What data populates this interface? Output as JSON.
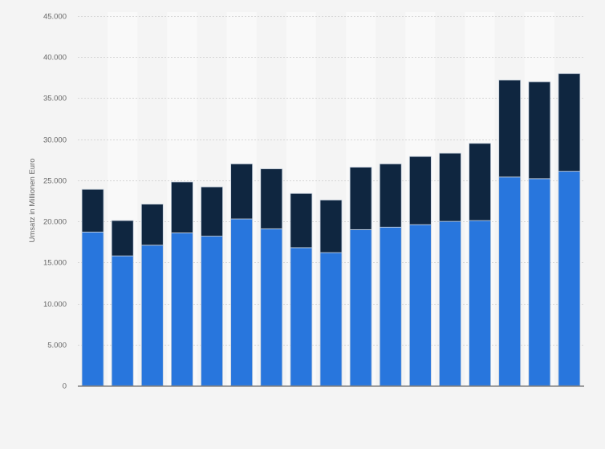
{
  "chart_data": {
    "type": "bar",
    "stacked": true,
    "title": "",
    "xlabel": "",
    "ylabel": "Umsatz in Millionen Euro",
    "ylim": [
      0,
      45000
    ],
    "yticks": [
      0,
      5000,
      10000,
      15000,
      20000,
      25000,
      30000,
      35000,
      40000,
      45000
    ],
    "ytick_labels": [
      "0",
      "5.000",
      "10.000",
      "15.000",
      "20.000",
      "25.000",
      "30.000",
      "35.000",
      "40.000",
      "45.000"
    ],
    "grid": true,
    "categories": [
      "",
      "",
      "",
      "",
      "",
      "",
      "",
      "",
      "",
      "",
      "",
      "",
      "",
      "",
      "",
      "",
      ""
    ],
    "series": [
      {
        "color": "#2876dd",
        "values": [
          18700,
          15800,
          17100,
          18600,
          18200,
          20300,
          19100,
          16800,
          16200,
          19000,
          19300,
          19600,
          20000,
          20100,
          25400,
          25200,
          26100
        ]
      },
      {
        "color": "#0f2640",
        "values": [
          5200,
          4300,
          5000,
          6200,
          6000,
          6700,
          7300,
          6600,
          6400,
          7600,
          7700,
          8300,
          8300,
          9400,
          11800,
          11800,
          11900
        ]
      }
    ]
  }
}
